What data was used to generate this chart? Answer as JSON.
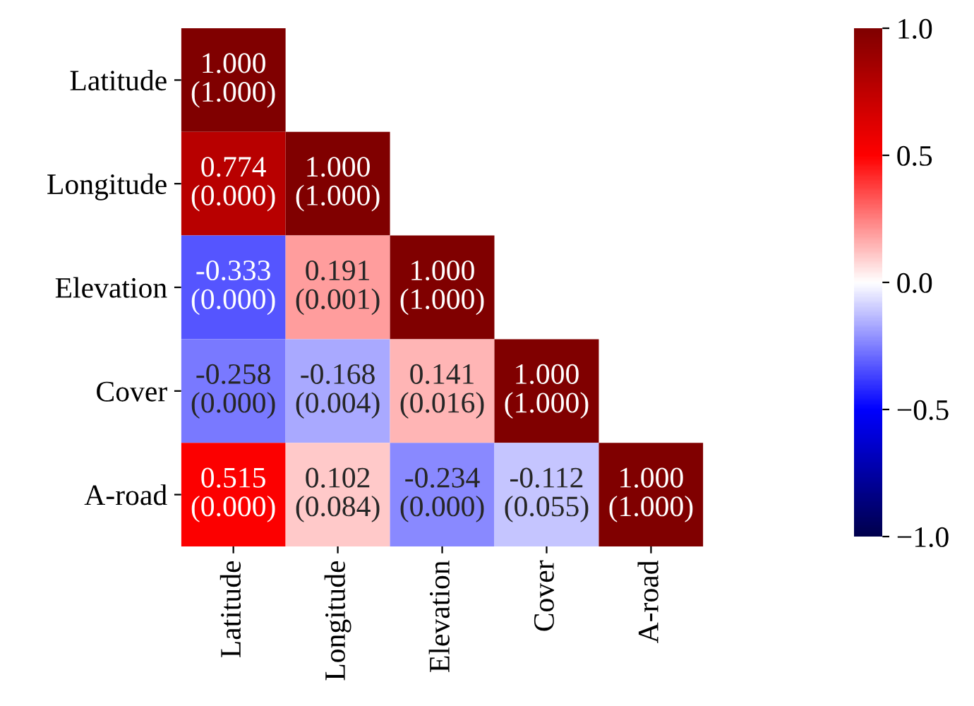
{
  "chart_data": {
    "type": "heatmap",
    "categories": [
      "Latitude",
      "Longitude",
      "Elevation",
      "Cover",
      "A-road"
    ],
    "y_categories": [
      "Latitude",
      "Longitude",
      "Elevation",
      "Cover",
      "A-road"
    ],
    "cells": [
      [
        1.0,
        null,
        null,
        null,
        null
      ],
      [
        0.774,
        1.0,
        null,
        null,
        null
      ],
      [
        -0.333,
        0.191,
        1.0,
        null,
        null
      ],
      [
        -0.258,
        -0.168,
        0.141,
        1.0,
        null
      ],
      [
        0.515,
        0.102,
        -0.234,
        -0.112,
        1.0
      ]
    ],
    "cell_labels": [
      [
        "1.000\n(1.000)",
        null,
        null,
        null,
        null
      ],
      [
        "0.774\n(0.000)",
        "1.000\n(1.000)",
        null,
        null,
        null
      ],
      [
        "-0.333\n(0.000)",
        "0.191\n(0.001)",
        "1.000\n(1.000)",
        null,
        null
      ],
      [
        "-0.258\n(0.000)",
        "-0.168\n(0.004)",
        "0.141\n(0.016)",
        "1.000\n(1.000)",
        null
      ],
      [
        "0.515\n(0.000)",
        "0.102\n(0.084)",
        "-0.234\n(0.000)",
        "-0.112\n(0.055)",
        "1.000\n(1.000)"
      ]
    ],
    "clim": [
      -1,
      1
    ],
    "cticks": [
      {
        "value": -1,
        "label": "−1.0"
      },
      {
        "value": -0.5,
        "label": "−0.5"
      },
      {
        "value": 0,
        "label": "0.0"
      },
      {
        "value": 0.5,
        "label": "0.5"
      },
      {
        "value": 1,
        "label": "1.0"
      }
    ]
  }
}
